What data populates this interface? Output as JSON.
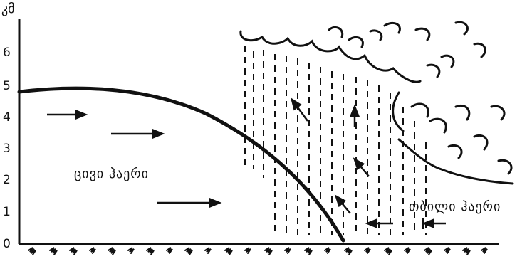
{
  "axis": {
    "unit_label": "კმ",
    "ticks": [
      "0",
      "1",
      "2",
      "3",
      "4",
      "5",
      "6"
    ]
  },
  "labels": {
    "cold_air": "ცივი ჰაერი",
    "warm_air": "თბილი ჰაერი"
  },
  "colors": {
    "ink": "#111111",
    "background": "#ffffff"
  }
}
